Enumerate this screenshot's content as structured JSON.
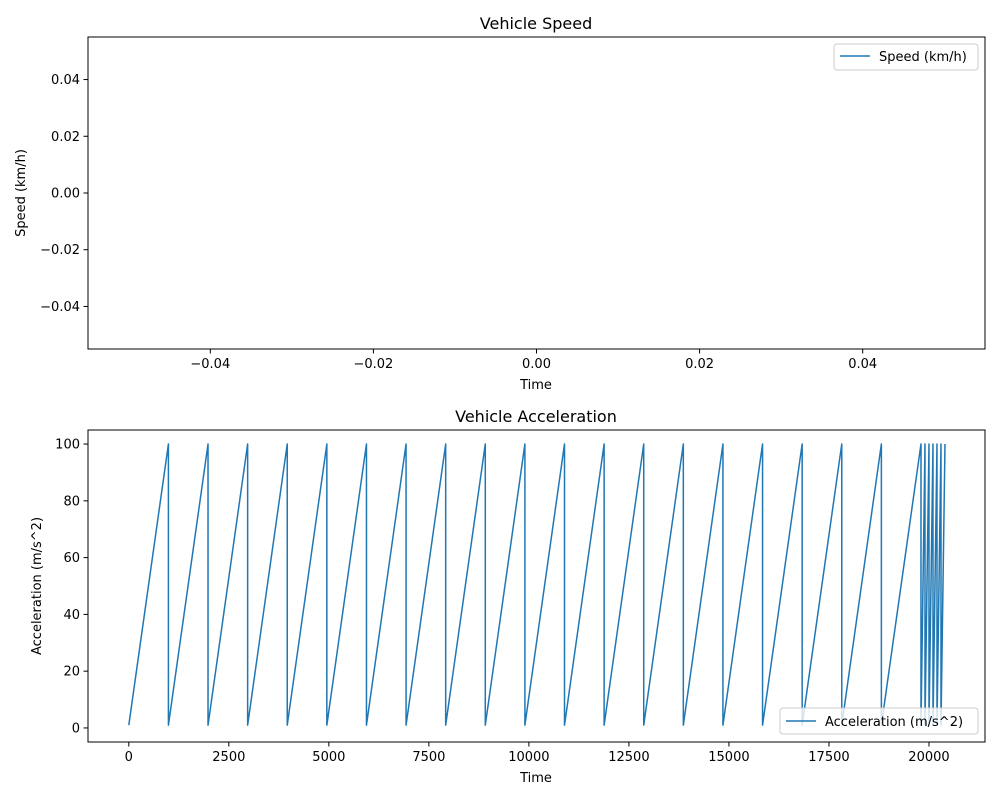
{
  "chart_data": [
    {
      "type": "line",
      "title": "Vehicle Speed",
      "xlabel": "Time",
      "ylabel": "Speed (km/h)",
      "xlim": [
        -0.055,
        0.055
      ],
      "ylim": [
        -0.055,
        0.055
      ],
      "xticks": [
        -0.04,
        -0.02,
        0.0,
        0.02,
        0.04
      ],
      "yticks": [
        -0.04,
        -0.02,
        0.0,
        0.02,
        0.04
      ],
      "xtick_labels": [
        "−0.04",
        "−0.02",
        "0.00",
        "0.02",
        "0.04"
      ],
      "ytick_labels": [
        "−0.04",
        "−0.02",
        "0.00",
        "0.02",
        "0.04"
      ],
      "legend_position": "top-right",
      "series": [
        {
          "name": "Speed (km/h)",
          "x": [],
          "y": [],
          "color": "#1f77b4"
        }
      ]
    },
    {
      "type": "line",
      "title": "Vehicle Acceleration",
      "xlabel": "Time",
      "ylabel": "Acceleration (m/s^2)",
      "xlim": [
        -1020,
        21400
      ],
      "ylim": [
        -4.95,
        104.95
      ],
      "xticks": [
        0,
        2500,
        5000,
        7500,
        10000,
        12500,
        15000,
        17500,
        20000
      ],
      "yticks": [
        0,
        20,
        40,
        60,
        80,
        100
      ],
      "xtick_labels": [
        "0",
        "2500",
        "5000",
        "7500",
        "10000",
        "12500",
        "15000",
        "17500",
        "20000"
      ],
      "ytick_labels": [
        "0",
        "20",
        "40",
        "60",
        "80",
        "100"
      ],
      "legend_position": "bottom-right",
      "series": [
        {
          "name": "Acceleration (m/s^2)",
          "color": "#1f77b4",
          "pattern": "sawtooth",
          "ramps": [
            [
              0,
              990
            ],
            [
              990,
              1980
            ],
            [
              1980,
              2970
            ],
            [
              2970,
              3960
            ],
            [
              3960,
              4950
            ],
            [
              4950,
              5940
            ],
            [
              5940,
              6930
            ],
            [
              6930,
              7920
            ],
            [
              7920,
              8910
            ],
            [
              8910,
              9900
            ],
            [
              9900,
              10890
            ],
            [
              10890,
              11880
            ],
            [
              11880,
              12870
            ],
            [
              12870,
              13860
            ],
            [
              13860,
              14850
            ],
            [
              14850,
              15840
            ],
            [
              15840,
              16830
            ],
            [
              16830,
              17820
            ],
            [
              17820,
              18810
            ],
            [
              18810,
              19800
            ],
            [
              19800,
              19900
            ],
            [
              19900,
              20000
            ],
            [
              20000,
              20100
            ],
            [
              20100,
              20200
            ],
            [
              20200,
              20300
            ],
            [
              20300,
              20400
            ]
          ],
          "ramp_min": 1,
          "ramp_max": 100
        }
      ]
    }
  ]
}
